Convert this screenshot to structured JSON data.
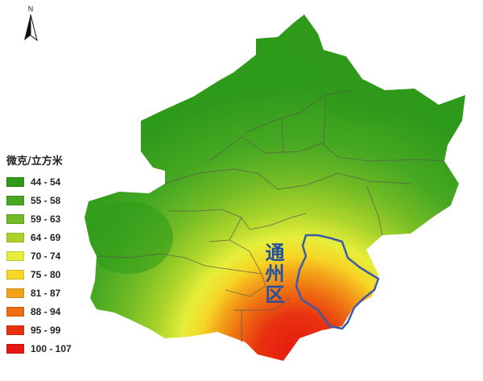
{
  "north_arrow": {
    "letter": "N",
    "icon": "north-arrow-icon"
  },
  "legend": {
    "title": "微克/立方米",
    "items": [
      {
        "label": "44 - 54",
        "color": "#2e9a1a"
      },
      {
        "label": "55 - 58",
        "color": "#46a822"
      },
      {
        "label": "59 - 63",
        "color": "#72bb25"
      },
      {
        "label": "64 - 69",
        "color": "#a9d32a"
      },
      {
        "label": "70 - 74",
        "color": "#e6ee3a"
      },
      {
        "label": "75 - 80",
        "color": "#f6d626"
      },
      {
        "label": "81 - 87",
        "color": "#f3a219"
      },
      {
        "label": "88 - 94",
        "color": "#ee6c12"
      },
      {
        "label": "95 - 99",
        "color": "#e8320f"
      },
      {
        "label": "100 - 107",
        "color": "#e81712"
      }
    ]
  },
  "highlight": {
    "name": "通州区",
    "outline_color": "#3a5ca8"
  }
}
